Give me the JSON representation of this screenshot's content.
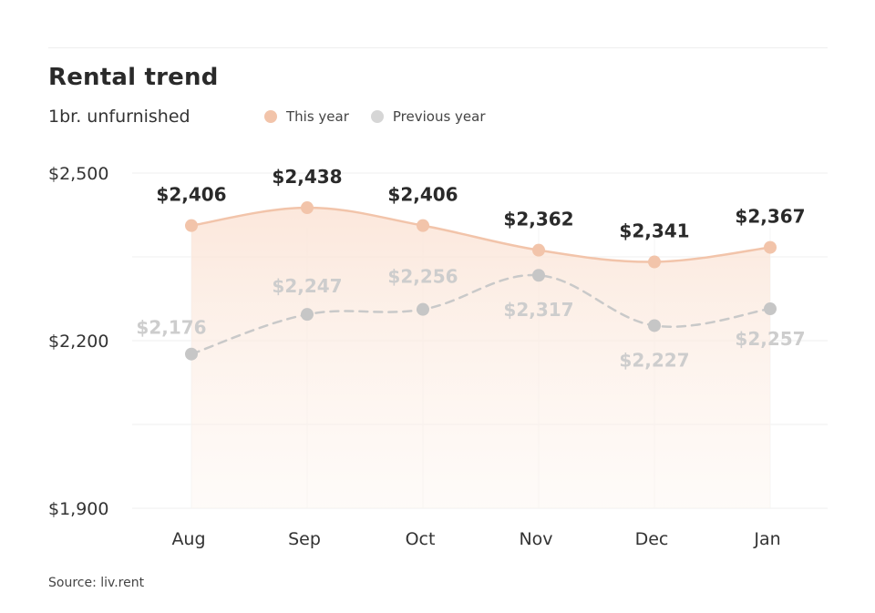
{
  "header": {
    "title": "Rental trend",
    "subtitle": "1br. unfurnished",
    "source": "Source: liv.rent"
  },
  "chart_data": {
    "type": "line",
    "title": "Rental trend",
    "subtitle": "1br. unfurnished",
    "categories": [
      "Aug",
      "Sep",
      "Oct",
      "Nov",
      "Dec",
      "Jan"
    ],
    "series": [
      {
        "name": "This year",
        "values": [
          2406,
          2438,
          2406,
          2362,
          2341,
          2367
        ],
        "labels": [
          "$2,406",
          "$2,438",
          "$2,406",
          "$2,362",
          "$2,341",
          "$2,367"
        ],
        "color": "#f2c4aa",
        "style": "solid-area"
      },
      {
        "name": "Previous year",
        "values": [
          2176,
          2247,
          2256,
          2317,
          2227,
          2257
        ],
        "labels": [
          "$2,176",
          "$2,247",
          "$2,256",
          "$2,317",
          "$2,227",
          "$2,257"
        ],
        "color": "#cccccc",
        "style": "dashed"
      }
    ],
    "y_ticks": [
      1900,
      2200,
      2500
    ],
    "y_tick_labels": [
      "$1,900",
      "$2,200",
      "$2,500"
    ],
    "ylim": [
      1900,
      2500
    ],
    "grid": true,
    "legend_position": "top-left"
  }
}
